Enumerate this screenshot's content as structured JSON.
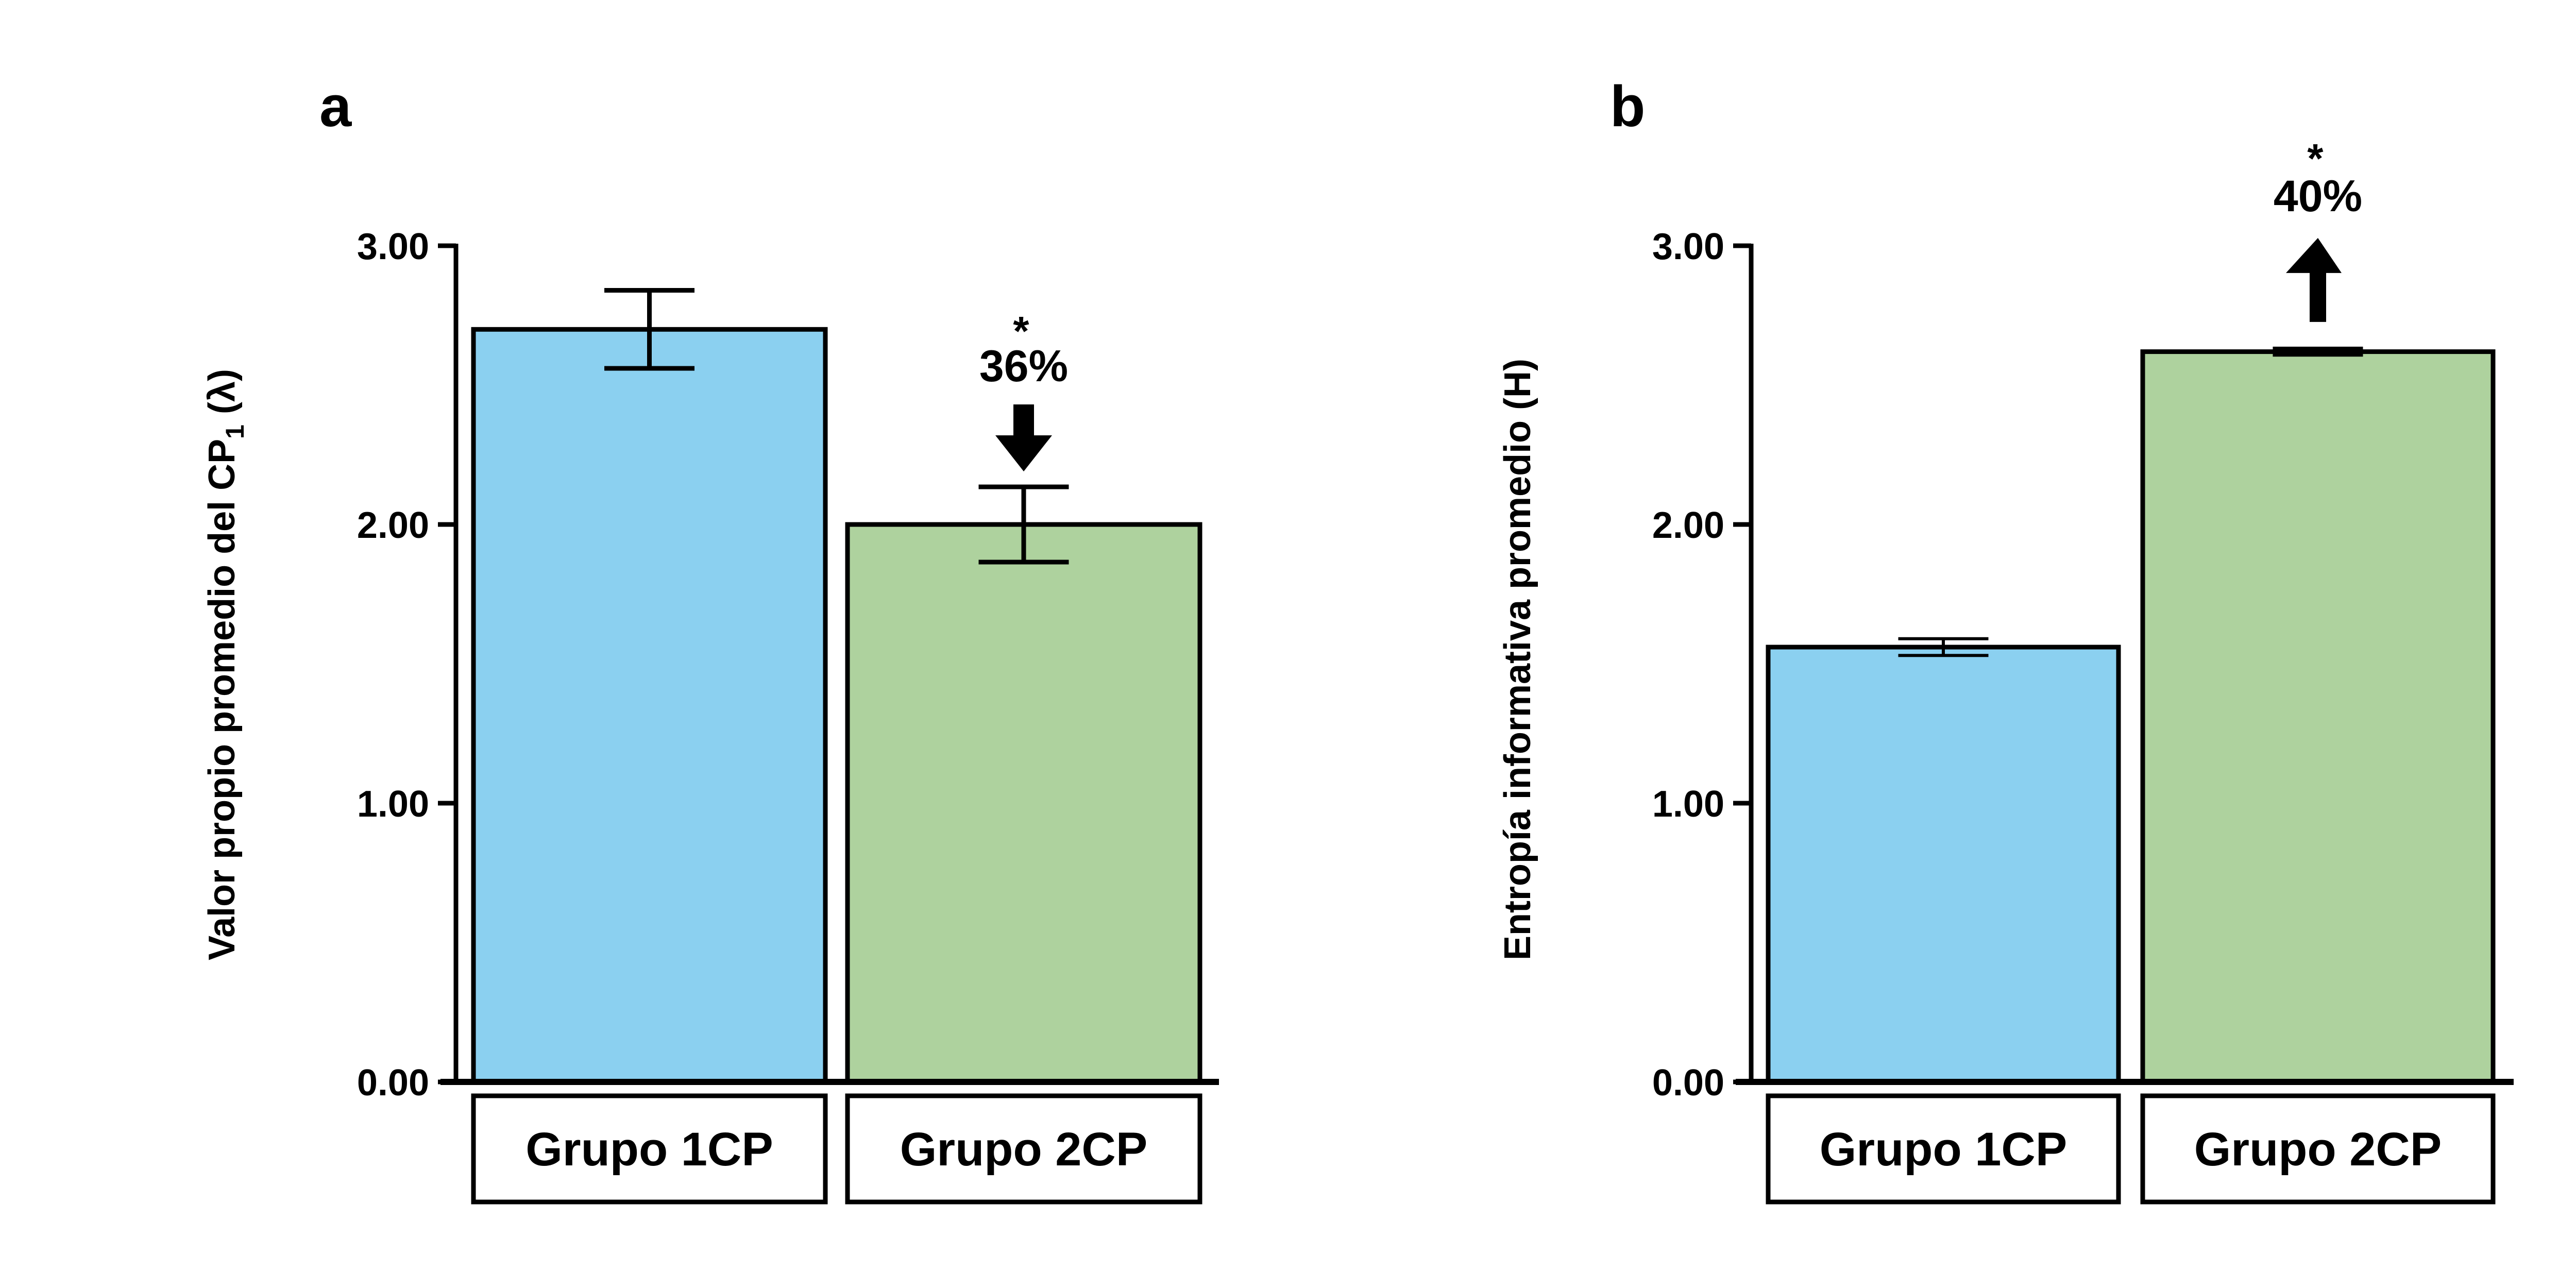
{
  "chart_data": [
    {
      "panel": "a",
      "type": "bar",
      "title": "",
      "categories": [
        "Grupo 1CP",
        "Grupo 2CP"
      ],
      "values": [
        2.7,
        2.0
      ],
      "errors": [
        0.14,
        0.135
      ],
      "colors": [
        "#8BD0F0",
        "#AED29E"
      ],
      "xlabel": "",
      "ylabel": "Valor propio promedio del CP",
      "ylabel_subscript": "1",
      "ylabel_suffix": " (λ)",
      "ylim": [
        0,
        3
      ],
      "yticks": [
        0,
        1,
        2,
        3
      ],
      "ytick_labels": [
        "0.00",
        "1.00",
        "2.00",
        "3.00"
      ],
      "grid": false,
      "legend": "none",
      "annotation": {
        "category": "Grupo 2CP",
        "star": "*",
        "text": "36%",
        "arrow": "down"
      }
    },
    {
      "panel": "b",
      "type": "bar",
      "title": "",
      "categories": [
        "Grupo 1CP",
        "Grupo 2CP"
      ],
      "values": [
        1.56,
        2.62
      ],
      "errors": [
        0.03,
        0.005
      ],
      "colors": [
        "#8BD0F0",
        "#AED29E"
      ],
      "xlabel": "",
      "ylabel": "Entropía informativa promedio (H)",
      "ylabel_subscript": "",
      "ylabel_suffix": "",
      "ylim": [
        0,
        3
      ],
      "yticks": [
        0,
        1,
        2,
        3
      ],
      "ytick_labels": [
        "0.00",
        "1.00",
        "2.00",
        "3.00"
      ],
      "grid": false,
      "legend": "none",
      "annotation": {
        "category": "Grupo 2CP",
        "star": "*",
        "text": "40%",
        "arrow": "up"
      }
    }
  ],
  "panels": {
    "a": {
      "letter": "a"
    },
    "b": {
      "letter": "b"
    }
  }
}
